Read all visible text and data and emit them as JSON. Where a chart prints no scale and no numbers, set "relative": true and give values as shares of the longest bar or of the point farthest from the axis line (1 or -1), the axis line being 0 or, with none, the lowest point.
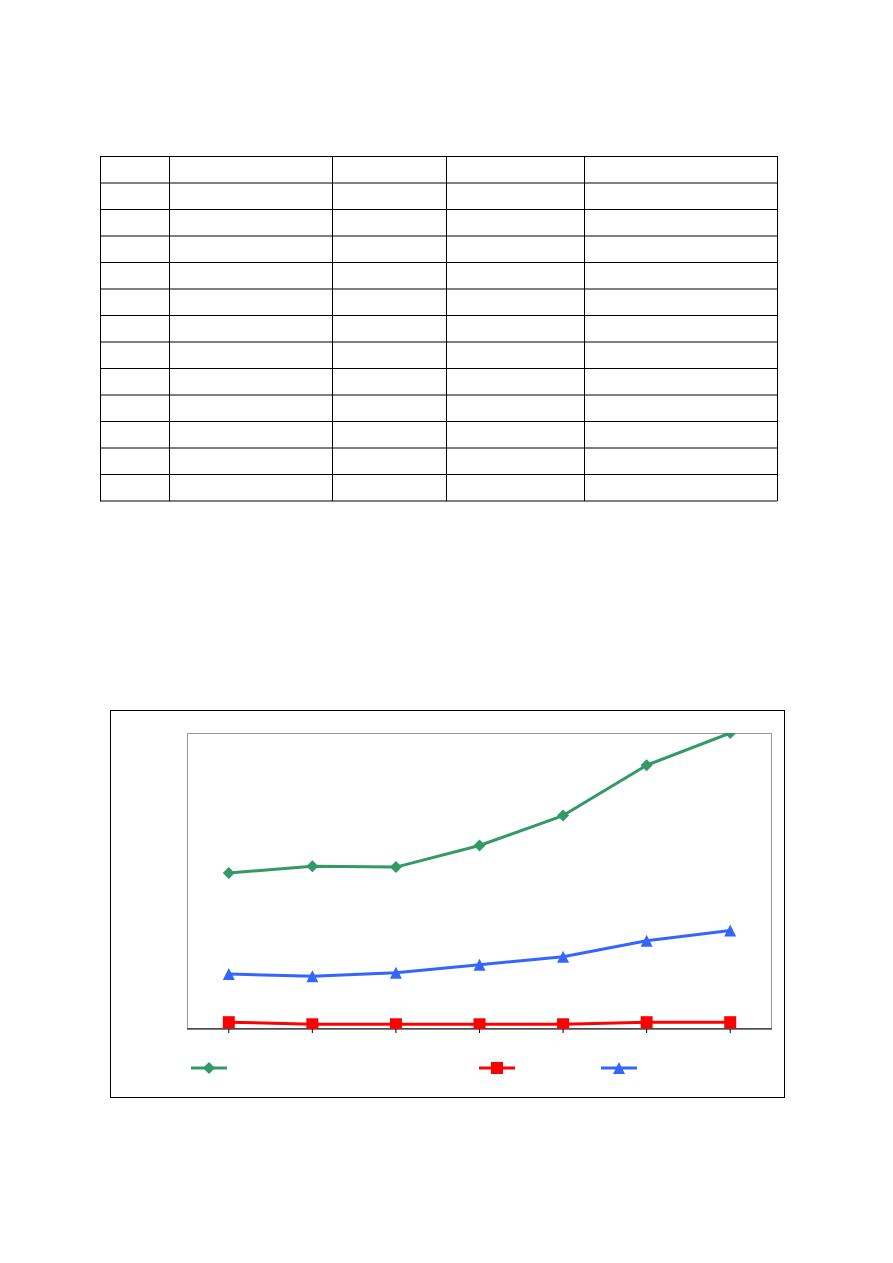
{
  "chart_data": {
    "type": "line",
    "relative": true,
    "categories": [
      null,
      null,
      null,
      null,
      null,
      null,
      null
    ],
    "series": [
      {
        "color": "#339966",
        "marker": "diamond",
        "values": [
          0.527,
          0.55,
          0.547,
          0.62,
          0.721,
          0.891,
          1
        ]
      },
      {
        "color": "#ff0000",
        "marker": "square",
        "values": [
          0.023,
          0.016,
          0.016,
          0.016,
          0.016,
          0.023,
          0.023
        ]
      },
      {
        "color": "#3366ff",
        "marker": "triangle",
        "values": [
          0.186,
          0.178,
          0.19,
          0.217,
          0.244,
          0.298,
          0.333
        ]
      }
    ],
    "line_style": "solid"
  }
}
